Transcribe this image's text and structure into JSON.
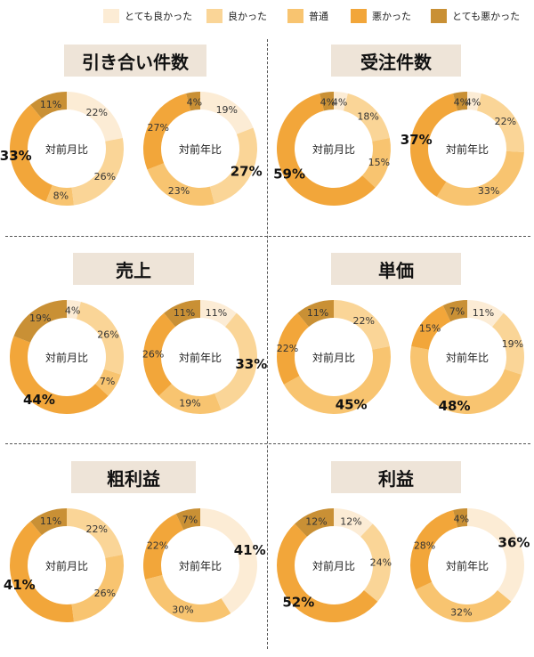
{
  "legend": [
    {
      "label": "とても良かった",
      "color": "#fcecd5"
    },
    {
      "label": "良かった",
      "color": "#fad597"
    },
    {
      "label": "普通",
      "color": "#f8c470"
    },
    {
      "label": "悪かった",
      "color": "#f2a63a"
    },
    {
      "label": "とても悪かった",
      "color": "#c99035"
    }
  ],
  "chart_data": [
    {
      "type": "pie",
      "title": "引き合い件数",
      "charts": [
        {
          "label": "対前月比",
          "values": [
            22,
            26,
            8,
            33,
            11
          ],
          "labels": [
            "22%",
            "26%",
            "8%",
            "33%",
            "11%"
          ]
        },
        {
          "label": "対前年比",
          "values": [
            19,
            27,
            23,
            27,
            4
          ],
          "labels": [
            "19%",
            "27%",
            "23%",
            "27%",
            "4%"
          ]
        }
      ]
    },
    {
      "type": "pie",
      "title": "受注件数",
      "charts": [
        {
          "label": "対前月比",
          "values": [
            4,
            18,
            15,
            59,
            4
          ],
          "labels": [
            "4%",
            "18%",
            "15%",
            "59%",
            "4%"
          ]
        },
        {
          "label": "対前年比",
          "values": [
            4,
            22,
            33,
            37,
            4
          ],
          "labels": [
            "4%",
            "22%",
            "33%",
            "37%",
            "4%"
          ]
        }
      ]
    },
    {
      "type": "pie",
      "title": "売上",
      "charts": [
        {
          "label": "対前月比",
          "values": [
            4,
            26,
            7,
            44,
            19
          ],
          "labels": [
            "4%",
            "26%",
            "7%",
            "44%",
            "19%"
          ]
        },
        {
          "label": "対前年比",
          "values": [
            11,
            33,
            19,
            26,
            11
          ],
          "labels": [
            "11%",
            "33%",
            "19%",
            "26%",
            "11%"
          ]
        }
      ]
    },
    {
      "type": "pie",
      "title": "単価",
      "charts": [
        {
          "label": "対前月比",
          "values": [
            0,
            22,
            45,
            22,
            11
          ],
          "labels": [
            "",
            "22%",
            "45%",
            "22%",
            "11%"
          ]
        },
        {
          "label": "対前年比",
          "values": [
            11,
            19,
            48,
            15,
            7
          ],
          "labels": [
            "11%",
            "19%",
            "48%",
            "15%",
            "7%"
          ]
        }
      ]
    },
    {
      "type": "pie",
      "title": "粗利益",
      "charts": [
        {
          "label": "対前月比",
          "values": [
            0,
            22,
            26,
            41,
            11
          ],
          "labels": [
            "",
            "22%",
            "26%",
            "41%",
            "11%"
          ]
        },
        {
          "label": "対前年比",
          "values": [
            41,
            0,
            30,
            22,
            7
          ],
          "labels": [
            "41%",
            "",
            "30%",
            "22%",
            "7%"
          ]
        }
      ]
    },
    {
      "type": "pie",
      "title": "利益",
      "charts": [
        {
          "label": "対前月比",
          "values": [
            12,
            24,
            0,
            52,
            12
          ],
          "labels": [
            "12%",
            "24%",
            "",
            "52%",
            "12%"
          ]
        },
        {
          "label": "対前年比",
          "values": [
            36,
            0,
            32,
            28,
            4
          ],
          "labels": [
            "36%",
            "",
            "32%",
            "28%",
            "4%"
          ]
        }
      ]
    }
  ]
}
